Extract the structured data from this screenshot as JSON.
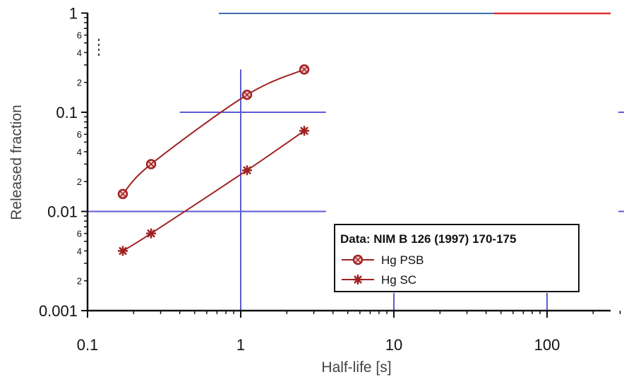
{
  "chart_data": {
    "type": "scatter",
    "xlabel": "Half-life [s]",
    "ylabel": "Released fraction",
    "xscale": "log",
    "yscale": "log",
    "xlim": [
      0.1,
      300
    ],
    "ylim": [
      0.001,
      1
    ],
    "x_ticks": [
      "0.1",
      "1",
      "10",
      "100"
    ],
    "y_ticks": [
      "0.001",
      "0.01",
      "0.1",
      "1"
    ],
    "y_minor_labels": [
      "2",
      "4",
      "6"
    ],
    "legend": {
      "title": "Data: NIM B 126 (1997) 170-175",
      "position": "lower-right"
    },
    "series": [
      {
        "name": "Hg PSB",
        "marker": "circle-cross",
        "color": "#a02222",
        "x": [
          0.17,
          0.26,
          1.1,
          2.6
        ],
        "y": [
          0.015,
          0.03,
          0.15,
          0.27
        ]
      },
      {
        "name": "Hg SC",
        "marker": "star",
        "color": "#a02222",
        "x": [
          0.17,
          0.26,
          1.1,
          2.6
        ],
        "y": [
          0.004,
          0.006,
          0.026,
          0.065
        ]
      }
    ]
  }
}
